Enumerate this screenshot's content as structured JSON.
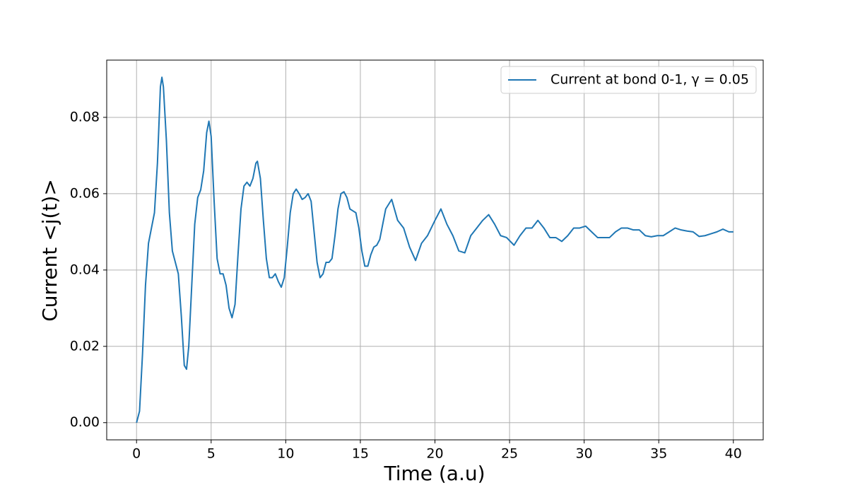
{
  "chart_data": {
    "type": "line",
    "xlabel": "Time (a.u)",
    "ylabel": "Current <j(t)>",
    "x": [
      0,
      0.2,
      0.4,
      0.6,
      0.8,
      1.0,
      1.2,
      1.4,
      1.6,
      1.7,
      1.8,
      2.0,
      2.2,
      2.4,
      2.6,
      2.8,
      3.0,
      3.2,
      3.35,
      3.5,
      3.7,
      3.9,
      4.1,
      4.3,
      4.5,
      4.7,
      4.85,
      5.0,
      5.2,
      5.4,
      5.6,
      5.8,
      6.0,
      6.2,
      6.4,
      6.6,
      6.8,
      7.0,
      7.2,
      7.4,
      7.6,
      7.8,
      8.0,
      8.1,
      8.3,
      8.5,
      8.7,
      8.9,
      9.1,
      9.3,
      9.5,
      9.7,
      9.9,
      10.1,
      10.3,
      10.5,
      10.7,
      10.9,
      11.1,
      11.3,
      11.5,
      11.7,
      11.9,
      12.1,
      12.3,
      12.5,
      12.7,
      12.9,
      13.1,
      13.3,
      13.5,
      13.7,
      13.9,
      14.1,
      14.3,
      14.5,
      14.7,
      14.9,
      15.1,
      15.3,
      15.5,
      15.7,
      15.9,
      16.1,
      16.3,
      16.5,
      16.7,
      17.1,
      17.5,
      17.9,
      18.3,
      18.7,
      19.1,
      19.5,
      20.0,
      20.4,
      20.8,
      21.2,
      21.6,
      22.0,
      22.4,
      22.8,
      23.2,
      23.6,
      24.0,
      24.4,
      24.8,
      25.3,
      25.7,
      26.1,
      26.5,
      26.9,
      27.3,
      27.7,
      28.1,
      28.5,
      28.9,
      29.3,
      29.7,
      30.1,
      30.5,
      30.9,
      31.3,
      31.7,
      32.1,
      32.5,
      32.9,
      33.3,
      33.7,
      34.1,
      34.5,
      34.9,
      35.3,
      35.7,
      36.1,
      36.5,
      36.9,
      37.3,
      37.7,
      38.1,
      38.5,
      38.9,
      39.3,
      39.7,
      40.0
    ],
    "series": [
      {
        "name": "Current at bond 0-1, γ = 0.05",
        "color": "#1f77b4",
        "values": [
          0.0,
          0.003,
          0.018,
          0.036,
          0.047,
          0.051,
          0.055,
          0.068,
          0.088,
          0.0905,
          0.088,
          0.074,
          0.055,
          0.045,
          0.042,
          0.039,
          0.028,
          0.015,
          0.014,
          0.02,
          0.036,
          0.052,
          0.059,
          0.061,
          0.066,
          0.076,
          0.079,
          0.075,
          0.058,
          0.043,
          0.039,
          0.039,
          0.036,
          0.03,
          0.0275,
          0.031,
          0.044,
          0.056,
          0.062,
          0.063,
          0.062,
          0.064,
          0.068,
          0.0685,
          0.064,
          0.053,
          0.043,
          0.038,
          0.038,
          0.039,
          0.037,
          0.0355,
          0.038,
          0.046,
          0.055,
          0.06,
          0.0612,
          0.06,
          0.0585,
          0.059,
          0.06,
          0.058,
          0.05,
          0.042,
          0.038,
          0.039,
          0.042,
          0.042,
          0.043,
          0.049,
          0.056,
          0.06,
          0.0605,
          0.059,
          0.056,
          0.0555,
          0.055,
          0.051,
          0.045,
          0.041,
          0.041,
          0.044,
          0.046,
          0.0465,
          0.048,
          0.052,
          0.056,
          0.0585,
          0.053,
          0.051,
          0.046,
          0.0425,
          0.047,
          0.049,
          0.053,
          0.056,
          0.052,
          0.049,
          0.045,
          0.0445,
          0.049,
          0.051,
          0.053,
          0.0545,
          0.052,
          0.049,
          0.0485,
          0.0465,
          0.049,
          0.051,
          0.051,
          0.053,
          0.051,
          0.0485,
          0.0485,
          0.0475,
          0.049,
          0.051,
          0.051,
          0.0515,
          0.05,
          0.0485,
          0.0485,
          0.0485,
          0.05,
          0.051,
          0.051,
          0.0505,
          0.0505,
          0.049,
          0.0487,
          0.049,
          0.049,
          0.05,
          0.051,
          0.0505,
          0.0502,
          0.05,
          0.0488,
          0.049,
          0.0495,
          0.05,
          0.0507,
          0.05,
          0.05
        ]
      }
    ],
    "xlim": [
      -2,
      42
    ],
    "ylim": [
      -0.0045,
      0.095
    ],
    "xticks": [
      0,
      5,
      10,
      15,
      20,
      25,
      30,
      35,
      40
    ],
    "yticks": [
      {
        "value": 0,
        "label": "0.00"
      },
      {
        "value": 0.02,
        "label": "0.02"
      },
      {
        "value": 0.04,
        "label": "0.04"
      },
      {
        "value": 0.06,
        "label": "0.06"
      },
      {
        "value": 0.08,
        "label": "0.08"
      }
    ],
    "grid": true,
    "legend": "upper right"
  }
}
